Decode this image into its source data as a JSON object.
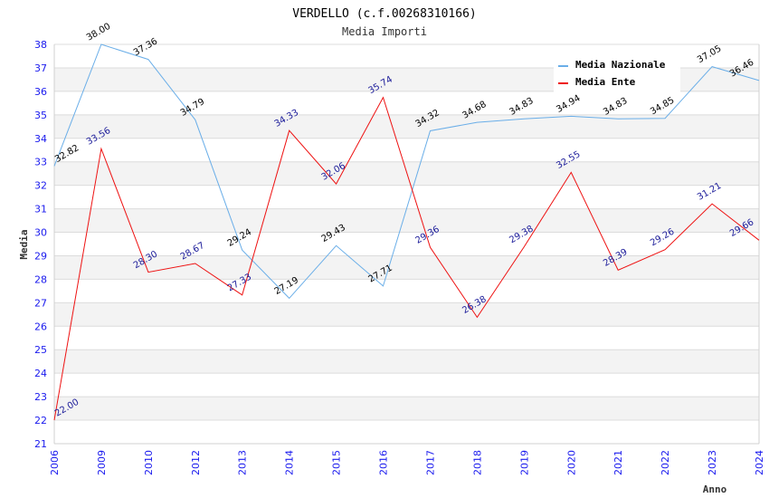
{
  "chart_data": {
    "type": "line",
    "title": "VERDELLO (c.f.00268310166)",
    "subtitle": "Media Importi",
    "xlabel": "Anno",
    "ylabel": "Media",
    "ylim": [
      21,
      38
    ],
    "yticks": [
      21,
      22,
      23,
      24,
      25,
      26,
      27,
      28,
      29,
      30,
      31,
      32,
      33,
      34,
      35,
      36,
      37,
      38
    ],
    "grid": true,
    "legend_position": "top-right",
    "categories": [
      "2006",
      "2009",
      "2010",
      "2012",
      "2013",
      "2014",
      "2015",
      "2016",
      "2017",
      "2018",
      "2019",
      "2020",
      "2021",
      "2022",
      "2023",
      "2024"
    ],
    "series": [
      {
        "name": "Media Nazionale",
        "color": "#6aaee8",
        "label_color": "#000000",
        "values": [
          32.82,
          38.0,
          37.36,
          34.79,
          29.24,
          27.19,
          29.43,
          27.71,
          34.32,
          34.68,
          34.83,
          34.94,
          34.83,
          34.85,
          37.05,
          36.46
        ],
        "labels": [
          "32.82",
          "38.00",
          "37.36",
          "34.79",
          "29.24",
          "27.19",
          "29.43",
          "27.71",
          "34.32",
          "34.68",
          "34.83",
          "34.94",
          "34.83",
          "34.85",
          "37.05",
          "36.46"
        ]
      },
      {
        "name": "Media Ente",
        "color": "#ee1111",
        "label_color": "#1a1a99",
        "values": [
          22.0,
          33.56,
          28.3,
          28.67,
          27.33,
          34.33,
          32.06,
          35.74,
          29.36,
          26.38,
          29.38,
          32.55,
          28.39,
          29.26,
          31.21,
          29.66
        ],
        "labels": [
          "22.00",
          "33.56",
          "28.30",
          "28.67",
          "27.33",
          "34.33",
          "32.06",
          "35.74",
          "29.36",
          "26.38",
          "29.38",
          "32.55",
          "28.39",
          "29.26",
          "31.21",
          "29.66"
        ]
      }
    ]
  }
}
